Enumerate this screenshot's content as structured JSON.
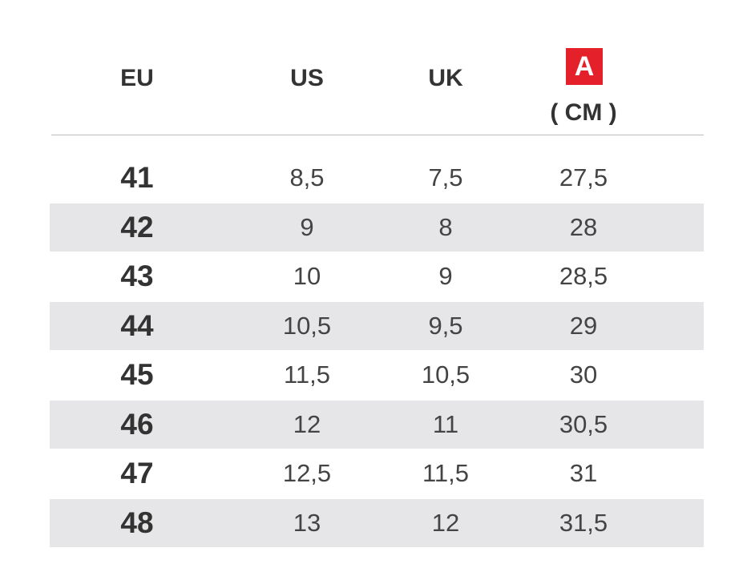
{
  "header": {
    "columns": [
      "EU",
      "US",
      "UK"
    ],
    "badge": "A",
    "unit": "( CM )"
  },
  "table": {
    "rows": [
      [
        "41",
        "8,5",
        "7,5",
        "27,5"
      ],
      [
        "42",
        "9",
        "8",
        "28"
      ],
      [
        "43",
        "10",
        "9",
        "28,5"
      ],
      [
        "44",
        "10,5",
        "9,5",
        "29"
      ],
      [
        "45",
        "11,5",
        "10,5",
        "30"
      ],
      [
        "46",
        "12",
        "11",
        "30,5"
      ],
      [
        "47",
        "12,5",
        "11,5",
        "31"
      ],
      [
        "48",
        "13",
        "12",
        "31,5"
      ]
    ]
  }
}
